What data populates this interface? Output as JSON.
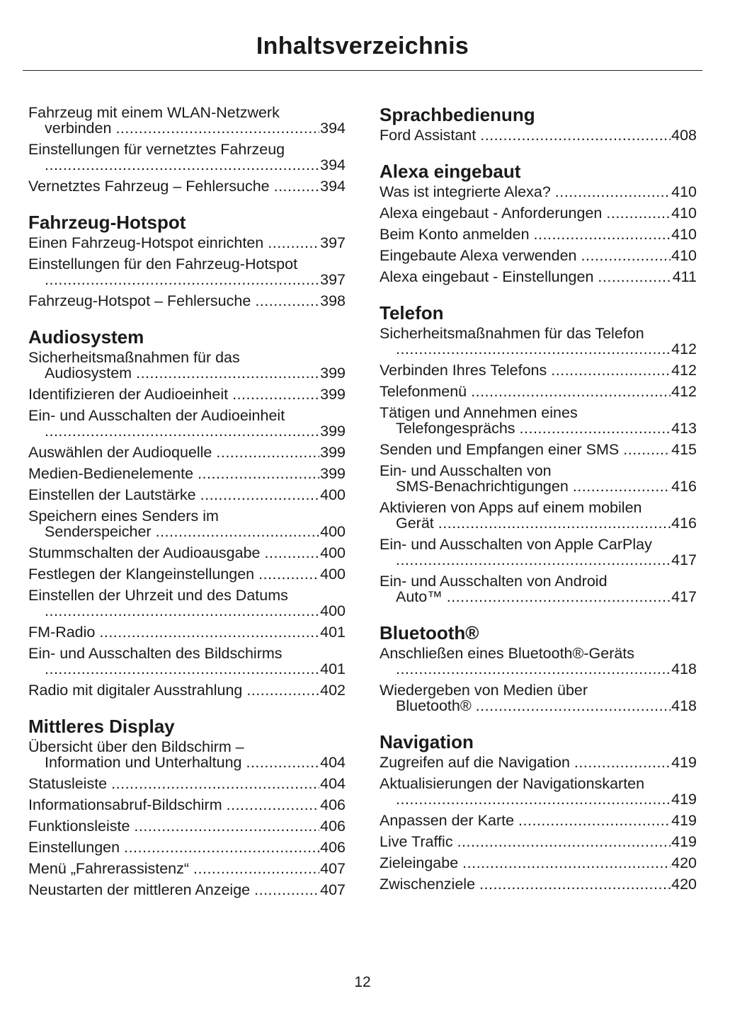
{
  "title": "Inhaltsverzeichnis",
  "page_number": "12",
  "left": [
    {
      "heading": "",
      "entries": [
        {
          "l1": "Fahrzeug mit einem WLAN-Netzwerk",
          "l2": "verbinden",
          "page": "394"
        },
        {
          "l1": "Einstellungen für vernetztes Fahrzeug",
          "l2": "",
          "page": "394"
        },
        {
          "l1": "Vernetztes Fahrzeug – Fehlersuche",
          "page": "394"
        }
      ]
    },
    {
      "heading": "Fahrzeug-Hotspot",
      "entries": [
        {
          "l1": "Einen Fahrzeug-Hotspot einrichten",
          "page": "397"
        },
        {
          "l1": "Einstellungen für den Fahrzeug-Hotspot",
          "l2": "",
          "page": "397"
        },
        {
          "l1": "Fahrzeug-Hotspot – Fehlersuche",
          "page": "398"
        }
      ]
    },
    {
      "heading": "Audiosystem",
      "entries": [
        {
          "l1": "Sicherheitsmaßnahmen für das",
          "l2": "Audiosystem",
          "page": "399"
        },
        {
          "l1": "Identifizieren der Audioeinheit",
          "page": "399"
        },
        {
          "l1": "Ein- und Ausschalten der Audioeinheit",
          "l2": "",
          "page": "399"
        },
        {
          "l1": "Auswählen der Audioquelle",
          "page": "399"
        },
        {
          "l1": "Medien-Bedienelemente",
          "page": "399"
        },
        {
          "l1": "Einstellen der Lautstärke",
          "page": "400"
        },
        {
          "l1": "Speichern eines Senders im",
          "l2": "Senderspeicher",
          "page": "400"
        },
        {
          "l1": "Stummschalten der Audioausgabe",
          "page": "400"
        },
        {
          "l1": "Festlegen der Klangeinstellungen",
          "page": "400"
        },
        {
          "l1": "Einstellen der Uhrzeit und des Datums",
          "l2": "",
          "page": "400"
        },
        {
          "l1": "FM-Radio",
          "page": "401"
        },
        {
          "l1": "Ein- und Ausschalten des Bildschirms",
          "l2": "",
          "page": "401"
        },
        {
          "l1": "Radio mit digitaler Ausstrahlung",
          "page": "402"
        }
      ]
    },
    {
      "heading": "Mittleres Display",
      "entries": [
        {
          "l1": "Übersicht über den Bildschirm –",
          "l2": "Information und Unterhaltung",
          "page": "404"
        },
        {
          "l1": "Statusleiste",
          "page": "404"
        },
        {
          "l1": "Informationsabruf-Bildschirm",
          "page": "406"
        },
        {
          "l1": "Funktionsleiste",
          "page": "406"
        },
        {
          "l1": "Einstellungen",
          "page": "406"
        },
        {
          "l1": "Menü „Fahrerassistenz“",
          "page": "407"
        },
        {
          "l1": "Neustarten der mittleren Anzeige",
          "page": "407"
        }
      ]
    }
  ],
  "right": [
    {
      "heading": "Sprachbedienung",
      "entries": [
        {
          "l1": "Ford Assistant",
          "page": "408"
        }
      ]
    },
    {
      "heading": "Alexa eingebaut",
      "entries": [
        {
          "l1": "Was ist integrierte Alexa?",
          "page": "410"
        },
        {
          "l1": "Alexa eingebaut - Anforderungen",
          "page": "410"
        },
        {
          "l1": "Beim Konto anmelden",
          "page": "410"
        },
        {
          "l1": "Eingebaute Alexa verwenden",
          "page": "410"
        },
        {
          "l1": "Alexa eingebaut - Einstellungen",
          "page": "411"
        }
      ]
    },
    {
      "heading": "Telefon",
      "entries": [
        {
          "l1": "Sicherheitsmaßnahmen für das Telefon",
          "l2": "",
          "page": "412"
        },
        {
          "l1": "Verbinden Ihres Telefons",
          "page": "412"
        },
        {
          "l1": "Telefonmenü",
          "page": "412"
        },
        {
          "l1": "Tätigen und Annehmen eines",
          "l2": "Telefongesprächs",
          "page": "413"
        },
        {
          "l1": "Senden und Empfangen einer SMS",
          "page": "415"
        },
        {
          "l1": "Ein- und Ausschalten von",
          "l2": "SMS-Benachrichtigungen",
          "page": "416"
        },
        {
          "l1": "Aktivieren von Apps auf einem mobilen",
          "l2": "Gerät",
          "page": "416"
        },
        {
          "l1": "Ein- und Ausschalten von Apple CarPlay",
          "l2": "",
          "page": "417"
        },
        {
          "l1": "Ein- und Ausschalten von Android",
          "l2": "Auto™",
          "page": "417"
        }
      ]
    },
    {
      "heading": "Bluetooth®",
      "entries": [
        {
          "l1": "Anschließen eines Bluetooth®-Geräts",
          "l2": "",
          "page": "418"
        },
        {
          "l1": "Wiedergeben von Medien über",
          "l2": "Bluetooth®",
          "page": "418"
        }
      ]
    },
    {
      "heading": "Navigation",
      "entries": [
        {
          "l1": "Zugreifen auf die Navigation",
          "page": "419"
        },
        {
          "l1": "Aktualisierungen der Navigationskarten",
          "l2": "",
          "page": "419"
        },
        {
          "l1": "Anpassen der Karte",
          "page": "419"
        },
        {
          "l1": "Live Traffic",
          "page": "419"
        },
        {
          "l1": "Zieleingabe",
          "page": "420"
        },
        {
          "l1": "Zwischenziele",
          "page": "420"
        }
      ]
    }
  ]
}
